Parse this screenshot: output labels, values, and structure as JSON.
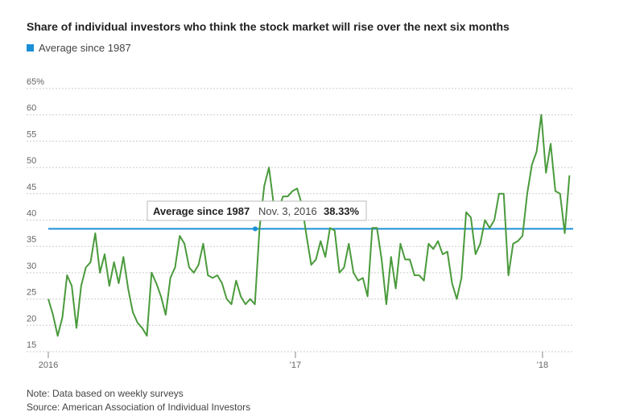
{
  "chart_data": {
    "type": "line",
    "title": "Share of individual investors who think the stock market will rise over the next six months",
    "average": {
      "name": "Average since 1987",
      "value": 38.33,
      "value_label": "38.33%",
      "color": "#1a8fd6"
    },
    "tooltip_date": "Nov. 3, 2016",
    "x": [
      2016.0,
      2016.019,
      2016.038,
      2016.057,
      2016.076,
      2016.095,
      2016.114,
      2016.133,
      2016.152,
      2016.171,
      2016.19,
      2016.209,
      2016.228,
      2016.247,
      2016.266,
      2016.285,
      2016.304,
      2016.323,
      2016.342,
      2016.361,
      2016.38,
      2016.399,
      2016.418,
      2016.437,
      2016.456,
      2016.475,
      2016.494,
      2016.513,
      2016.532,
      2016.551,
      2016.57,
      2016.589,
      2016.608,
      2016.627,
      2016.646,
      2016.665,
      2016.684,
      2016.703,
      2016.722,
      2016.741,
      2016.76,
      2016.779,
      2016.798,
      2016.817,
      2016.836,
      2016.855,
      2016.874,
      2016.893,
      2016.912,
      2016.931,
      2016.95,
      2016.969,
      2016.988,
      2017.007,
      2017.026,
      2017.045,
      2017.064,
      2017.083,
      2017.102,
      2017.121,
      2017.14,
      2017.159,
      2017.178,
      2017.197,
      2017.216,
      2017.235,
      2017.254,
      2017.273,
      2017.292,
      2017.311,
      2017.33,
      2017.349,
      2017.368,
      2017.387,
      2017.406,
      2017.425,
      2017.444,
      2017.463,
      2017.482,
      2017.501,
      2017.52,
      2017.539,
      2017.558,
      2017.577,
      2017.596,
      2017.615,
      2017.634,
      2017.653,
      2017.672,
      2017.691,
      2017.71,
      2017.729,
      2017.748,
      2017.767,
      2017.786,
      2017.805,
      2017.824,
      2017.843,
      2017.862,
      2017.881,
      2017.9,
      2017.919,
      2017.938,
      2017.957,
      2017.976,
      2017.995,
      2018.014,
      2018.033,
      2018.052,
      2018.071,
      2018.09,
      2018.109
    ],
    "series": [
      {
        "color": "#4a9a3c",
        "values": [
          25,
          22,
          18,
          21.5,
          29.5,
          27.5,
          19.5,
          27.5,
          31,
          32,
          37.5,
          30,
          33.5,
          27.5,
          32,
          28,
          33,
          27,
          22.5,
          20.5,
          19.5,
          18,
          30,
          28,
          25.5,
          22,
          29,
          31,
          37,
          35.5,
          31,
          30,
          31.5,
          35.5,
          29.5,
          29,
          29.5,
          28,
          25,
          24,
          28.5,
          25.5,
          24,
          25,
          24,
          38.5,
          46.5,
          50,
          43,
          42,
          44.5,
          44.5,
          45.5,
          46,
          43,
          37,
          31.5,
          32.5,
          36,
          33,
          38.5,
          38,
          30,
          31,
          35.5,
          30,
          28.5,
          29,
          25.5,
          38.5,
          38.5,
          32.5,
          24,
          33,
          27,
          35.5,
          32.5,
          32.5,
          29.5,
          29.5,
          28.5,
          35.5,
          34.5,
          36,
          33.5,
          34,
          28,
          25,
          29,
          41.5,
          40.5,
          33.5,
          35.5,
          40,
          38.5,
          40,
          45,
          45,
          29.5,
          35.5,
          36,
          37,
          45,
          50.5,
          53,
          60,
          49,
          54.5,
          45.5,
          45,
          37.5,
          48.5
        ]
      }
    ],
    "xlim": [
      2016,
      2018.124
    ],
    "xticks": [
      {
        "value": 2016,
        "label": "2016"
      },
      {
        "value": 2017,
        "label": "'17"
      },
      {
        "value": 2018,
        "label": "'18"
      }
    ],
    "ylim": [
      15,
      65
    ],
    "yticks": [
      15,
      20,
      25,
      30,
      35,
      40,
      45,
      50,
      55,
      60,
      {
        "value": 65,
        "label": "65%"
      }
    ],
    "grid": true,
    "note": "Note: Data based on weekly surveys",
    "source": "Source: American Association of Individual Investors"
  }
}
